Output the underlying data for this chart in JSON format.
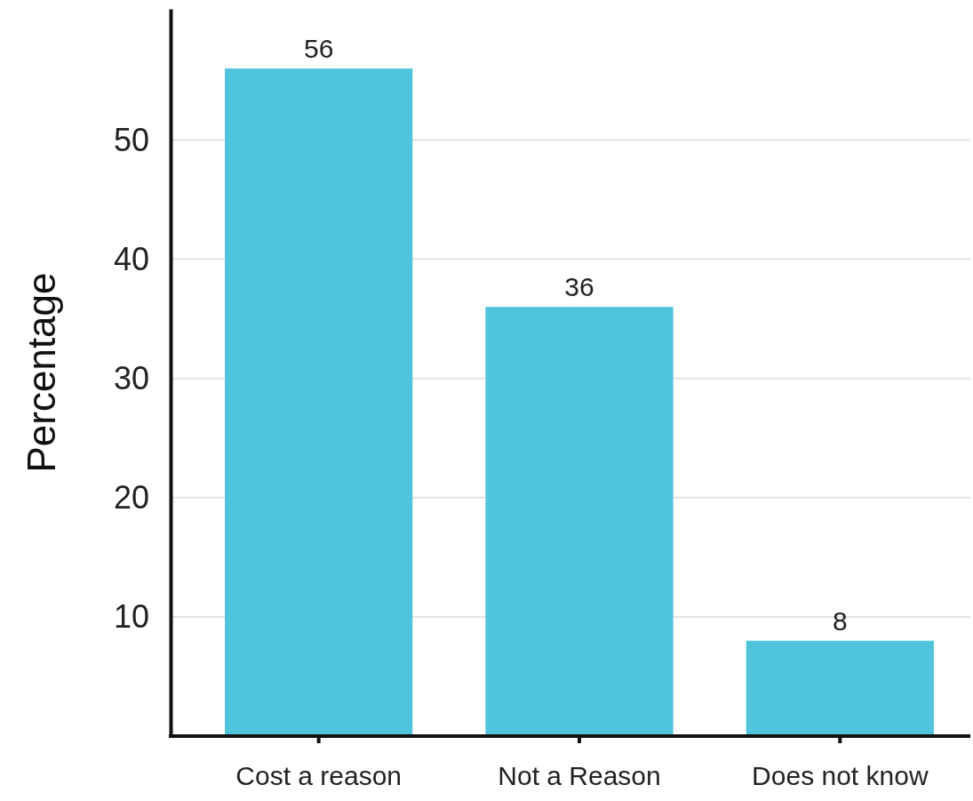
{
  "chart_data": {
    "type": "bar",
    "ylabel": "Percentage",
    "categories": [
      "Cost a reason",
      "Not a Reason",
      "Does not know"
    ],
    "values": [
      56,
      36,
      8
    ],
    "color": "#4fc4dc",
    "ylim": [
      0,
      61
    ],
    "yticks": [
      10,
      20,
      30,
      40,
      50
    ],
    "grid": "y",
    "data_labels": true
  }
}
